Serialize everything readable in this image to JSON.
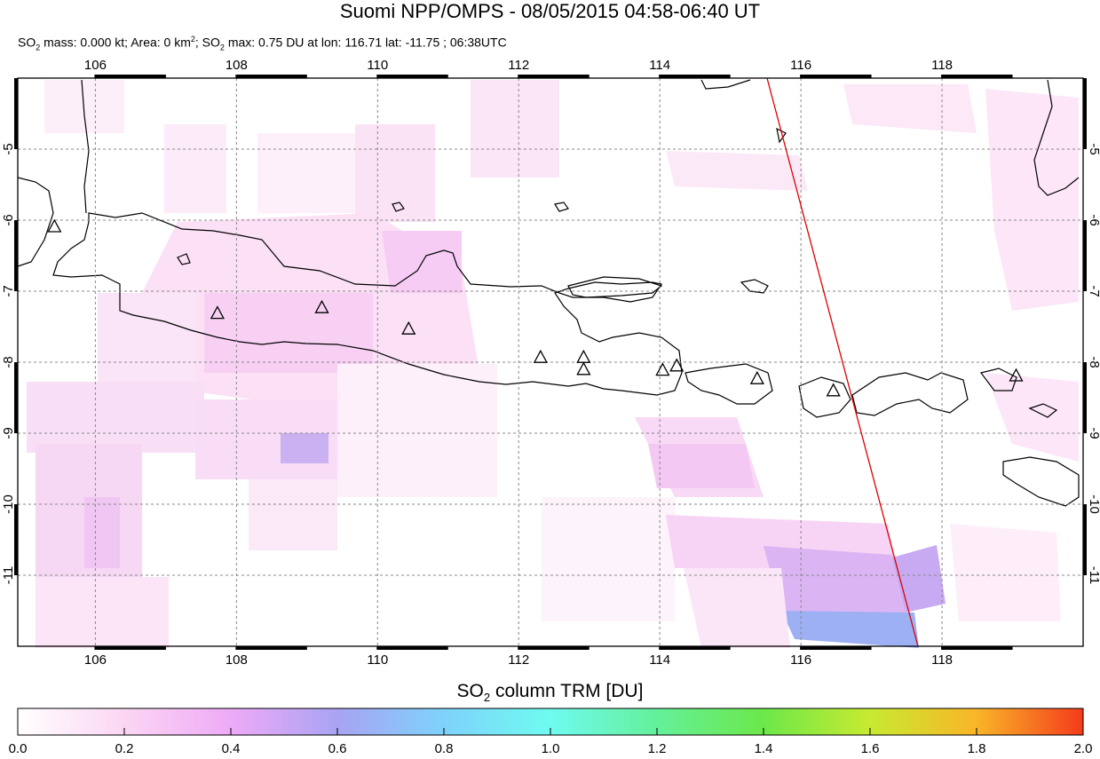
{
  "title": "Suomi NPP/OMPS - 08/05/2015 04:58-06:40 UT",
  "subtitle": {
    "so2_prefix": "SO",
    "sub2": "2",
    "mass_text": " mass: 0.000 kt; Area: 0 km",
    "sup2": "2",
    "sep": "; SO",
    "max_text": " max: 0.75 DU at lon: 116.71 lat: -11.75 ; 06:38UTC"
  },
  "map": {
    "lon_ticks": [
      "106",
      "108",
      "110",
      "112",
      "114",
      "116",
      "118"
    ],
    "lat_ticks": [
      "-5",
      "-6",
      "-7",
      "-8",
      "-9",
      "-10",
      "-11"
    ],
    "lon_range": [
      104.9,
      120.0
    ],
    "lat_range": [
      -12.0,
      -4.0
    ],
    "grid": true,
    "orbit_track_color": "#dd0000",
    "volcano_marker": "triangle",
    "volcanoes": [
      {
        "lon": 105.42,
        "lat": -6.1
      },
      {
        "lon": 107.73,
        "lat": -7.32
      },
      {
        "lon": 109.21,
        "lat": -7.24
      },
      {
        "lon": 110.44,
        "lat": -7.54
      },
      {
        "lon": 112.31,
        "lat": -7.94
      },
      {
        "lon": 112.92,
        "lat": -7.94
      },
      {
        "lon": 112.92,
        "lat": -8.11
      },
      {
        "lon": 114.04,
        "lat": -8.12
      },
      {
        "lon": 114.24,
        "lat": -8.06
      },
      {
        "lon": 115.38,
        "lat": -8.24
      },
      {
        "lon": 116.46,
        "lat": -8.41
      },
      {
        "lon": 119.05,
        "lat": -8.2
      }
    ]
  },
  "colorbar": {
    "title_prefix": "SO",
    "title_sub": "2",
    "title_suffix": " column TRM [DU]",
    "ticks": [
      "0.0",
      "0.2",
      "0.4",
      "0.6",
      "0.8",
      "1.0",
      "1.2",
      "1.4",
      "1.6",
      "1.8",
      "2.0"
    ],
    "range": [
      0.0,
      2.0
    ],
    "colors": [
      "#ffffff",
      "#fbd6f3",
      "#eeaaf7",
      "#a9a3f3",
      "#7ed2fb",
      "#6ffbf0",
      "#64f09a",
      "#6ce84a",
      "#c8ea30",
      "#f9b528",
      "#f43b1c"
    ]
  }
}
